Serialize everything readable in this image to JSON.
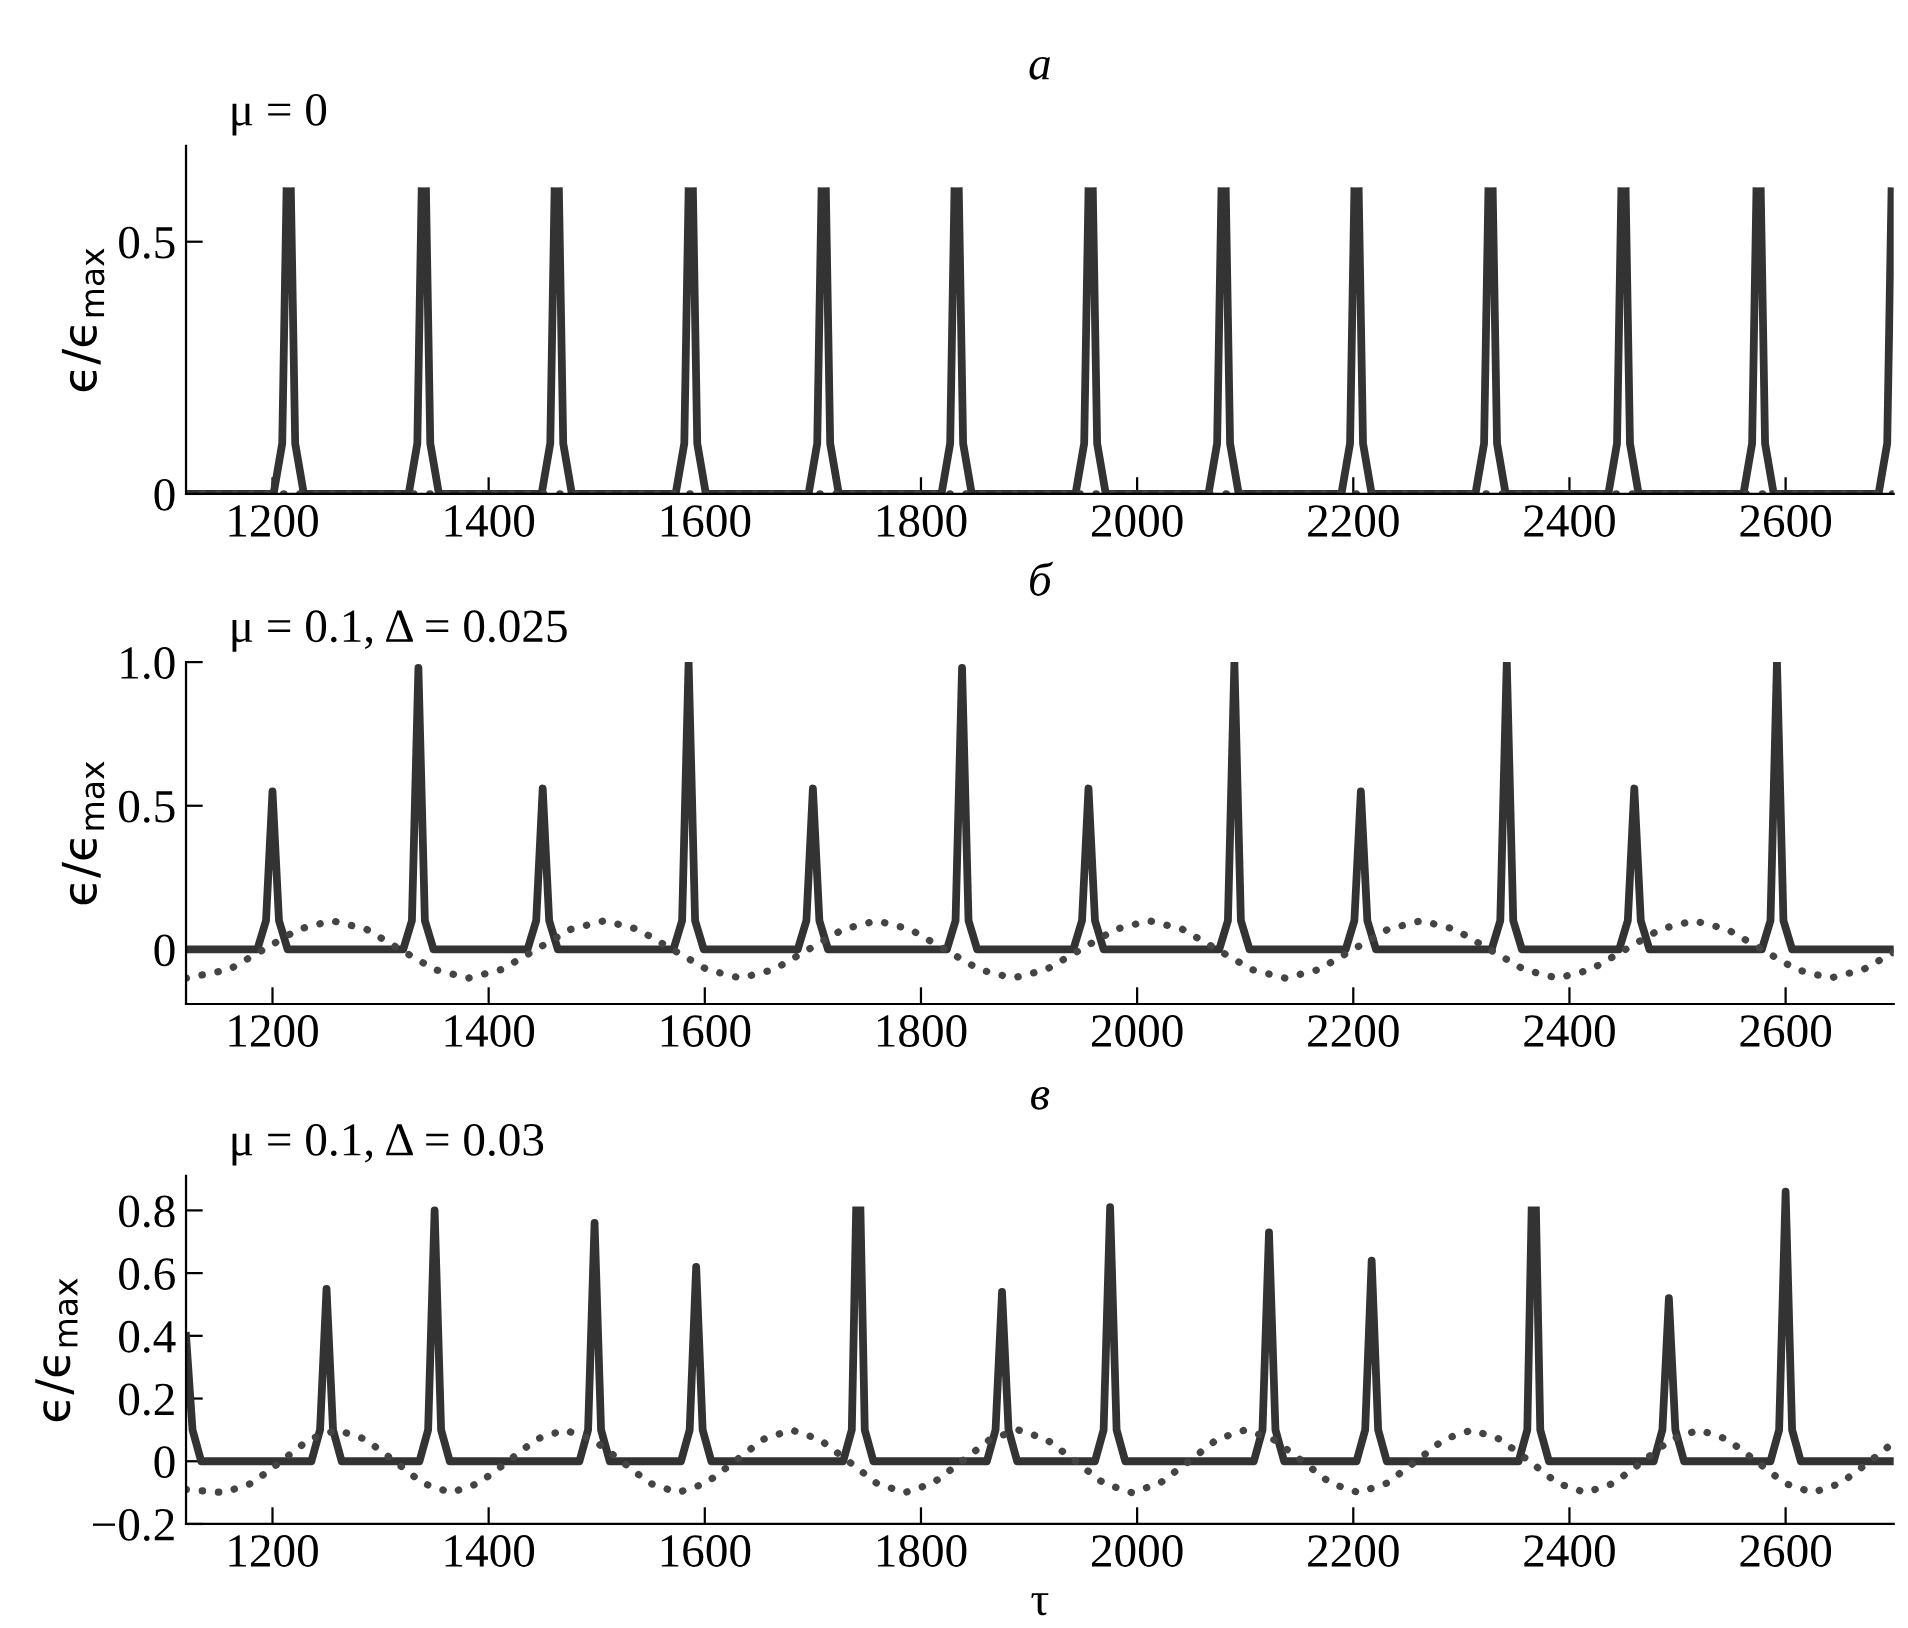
{
  "chart_data": [
    {
      "type": "line",
      "title": "а",
      "subtitle": "μ = 0",
      "ylabel": "ϵ/ϵ$_{max}$",
      "xlim": [
        1120,
        2700
      ],
      "ylim": [
        0,
        0.69
      ],
      "xticks": [
        1200,
        1400,
        1600,
        1800,
        2000,
        2200,
        2400,
        2600
      ],
      "yticks": [
        0,
        0.5
      ],
      "grid": false,
      "marker": "none",
      "series": [
        {
          "color": "#333333",
          "line_style": "solid",
          "x": [
            1120,
            1201,
            1209,
            1213,
            1215,
            1217,
            1221,
            1229,
            1326,
            1334,
            1338,
            1340,
            1342,
            1346,
            1354,
            1449,
            1457,
            1461,
            1463,
            1465,
            1469,
            1477,
            1573,
            1581,
            1585,
            1587,
            1589,
            1593,
            1601,
            1696,
            1704,
            1708,
            1710,
            1712,
            1716,
            1724,
            1819,
            1827,
            1831,
            1833,
            1835,
            1839,
            1847,
            1943,
            1951,
            1955,
            1957,
            1959,
            1963,
            1971,
            2066,
            2074,
            2078,
            2080,
            2082,
            2086,
            2094,
            2189,
            2197,
            2201,
            2203,
            2205,
            2209,
            2217,
            2313,
            2321,
            2325,
            2327,
            2329,
            2333,
            2341,
            2436,
            2444,
            2448,
            2450,
            2452,
            2456,
            2464,
            2561,
            2569,
            2573,
            2575,
            2577,
            2581,
            2589,
            2686,
            2694,
            2698
          ],
          "values": [
            0,
            0,
            0.1,
            0.6,
            null,
            0.6,
            0.1,
            0,
            0,
            0.1,
            0.6,
            null,
            0.6,
            0.1,
            0,
            0,
            0.1,
            0.6,
            null,
            0.6,
            0.1,
            0,
            0,
            0.1,
            0.6,
            null,
            0.6,
            0.1,
            0,
            0,
            0.1,
            0.6,
            null,
            0.6,
            0.1,
            0,
            0,
            0.1,
            0.6,
            null,
            0.6,
            0.1,
            0,
            0,
            0.1,
            0.6,
            null,
            0.6,
            0.1,
            0,
            0,
            0.1,
            0.6,
            null,
            0.6,
            0.1,
            0,
            0,
            0.1,
            0.6,
            null,
            0.6,
            0.1,
            0,
            0,
            0.1,
            0.6,
            null,
            0.6,
            0.1,
            0,
            0,
            0.1,
            0.6,
            null,
            0.6,
            0.1,
            0,
            0,
            0.1,
            0.6,
            null,
            0.6,
            0.1,
            0,
            0,
            0.1,
            0.6
          ]
        },
        {
          "color": "#444444",
          "line_style": "dotted",
          "x": [
            1120,
            2700
          ],
          "values": [
            0,
            0
          ]
        }
      ]
    },
    {
      "type": "line",
      "title": "б",
      "subtitle": "μ = 0.1, Δ = 0.025",
      "ylabel": "ϵ/ϵ$_{max}$",
      "xlim": [
        1120,
        2700
      ],
      "ylim": [
        -0.19,
        1.0
      ],
      "xticks": [
        1200,
        1400,
        1600,
        1800,
        2000,
        2200,
        2400,
        2600
      ],
      "yticks": [
        0,
        0.5,
        {
          "value": 1.0,
          "label": "1.0"
        }
      ],
      "grid": false,
      "marker": "none",
      "series": [
        {
          "color": "#333333",
          "line_style": "solid",
          "x": [
            1120,
            1186,
            1194,
            1200,
            1206,
            1214,
            1321,
            1329,
            1335,
            1341,
            1349,
            1436,
            1444,
            1450,
            1456,
            1464,
            1571,
            1579,
            1585,
            1591,
            1599,
            1686,
            1694,
            1700,
            1706,
            1714,
            1824,
            1832,
            1838,
            1844,
            1852,
            1941,
            1949,
            1955,
            1961,
            1969,
            2076,
            2084,
            2090,
            2096,
            2104,
            2193,
            2201,
            2207,
            2213,
            2221,
            2328,
            2336,
            2342,
            2348,
            2356,
            2446,
            2454,
            2460,
            2466,
            2474,
            2578,
            2586,
            2592,
            2598,
            2606,
            2700
          ],
          "values": [
            0,
            0,
            0.1,
            0.55,
            0.1,
            0,
            0,
            0.1,
            0.98,
            0.1,
            0,
            0,
            0.1,
            0.56,
            0.1,
            0,
            0,
            0.1,
            1.0,
            0.1,
            0,
            0,
            0.1,
            0.56,
            0.1,
            0,
            0,
            0.1,
            0.98,
            0.1,
            0,
            0,
            0.1,
            0.56,
            0.1,
            0,
            0,
            0.1,
            1.0,
            0.1,
            0,
            0,
            0.1,
            0.55,
            0.1,
            0,
            0,
            0.1,
            1.0,
            0.1,
            0,
            0,
            0.1,
            0.56,
            0.1,
            0,
            0,
            0.1,
            1.0,
            0.1,
            0,
            0
          ]
        },
        {
          "color": "#444444",
          "line_style": "dotted",
          "x": [
            1120,
            1160,
            1192,
            1224,
            1255,
            1287,
            1318,
            1350,
            1381,
            1412,
            1444,
            1476,
            1507,
            1538,
            1570,
            1602,
            1633,
            1664,
            1696,
            1728,
            1759,
            1790,
            1822,
            1854,
            1885,
            1916,
            1948,
            1980,
            2011,
            2042,
            2074,
            2106,
            2137,
            2168,
            2200,
            2232,
            2263,
            2294,
            2326,
            2358,
            2389,
            2420,
            2452,
            2484,
            2515,
            2546,
            2578,
            2610,
            2641,
            2672,
            2700
          ],
          "values": [
            -0.1,
            -0.07,
            0,
            0.07,
            0.1,
            0.07,
            0,
            -0.07,
            -0.1,
            -0.07,
            0,
            0.07,
            0.1,
            0.07,
            0,
            -0.07,
            -0.1,
            -0.07,
            0,
            0.07,
            0.1,
            0.07,
            0,
            -0.07,
            -0.1,
            -0.07,
            0,
            0.07,
            0.1,
            0.07,
            0,
            -0.07,
            -0.1,
            -0.07,
            0,
            0.07,
            0.1,
            0.07,
            0,
            -0.07,
            -0.1,
            -0.07,
            0,
            0.07,
            0.1,
            0.07,
            0,
            -0.07,
            -0.1,
            -0.07,
            -0.01
          ]
        }
      ]
    },
    {
      "type": "line",
      "title": "в",
      "subtitle": "μ = 0.1, Δ = 0.03",
      "xlabel": "τ",
      "ylabel": "ϵ/ϵ$_{max}$",
      "xlim": [
        1120,
        2700
      ],
      "ylim": [
        -0.2,
        0.91
      ],
      "xticks": [
        1200,
        1400,
        1600,
        1800,
        2000,
        2200,
        2400,
        2600
      ],
      "yticks": [
        {
          "value": -0.2,
          "label": "−0.2"
        },
        0,
        0.2,
        0.4,
        0.6,
        0.8
      ],
      "grid": false,
      "marker": "none",
      "series": [
        {
          "color": "#333333",
          "line_style": "solid",
          "x": [
            1120,
            1126,
            1134,
            1236,
            1244,
            1250,
            1256,
            1264,
            1336,
            1344,
            1350,
            1356,
            1364,
            1484,
            1492,
            1498,
            1504,
            1512,
            1578,
            1586,
            1592,
            1598,
            1606,
            1728,
            1736,
            1740,
            1742,
            1744,
            1748,
            1756,
            1861,
            1869,
            1875,
            1881,
            1889,
            1961,
            1969,
            1975,
            1981,
            1989,
            2108,
            2116,
            2122,
            2128,
            2136,
            2203,
            2211,
            2217,
            2223,
            2231,
            2353,
            2361,
            2365,
            2367,
            2369,
            2373,
            2381,
            2478,
            2486,
            2492,
            2498,
            2506,
            2586,
            2594,
            2600,
            2606,
            2614,
            2700
          ],
          "values": [
            0.4,
            0.1,
            0,
            0,
            0.1,
            0.55,
            0.1,
            0,
            0,
            0.1,
            0.8,
            0.1,
            0,
            0,
            0.1,
            0.76,
            0.1,
            0,
            0,
            0.1,
            0.62,
            0.1,
            0,
            0,
            0.1,
            0.8,
            null,
            0.8,
            0.1,
            0,
            0,
            0.1,
            0.54,
            0.1,
            0,
            0,
            0.1,
            0.81,
            0.1,
            0,
            0,
            0.1,
            0.73,
            0.1,
            0,
            0,
            0.1,
            0.64,
            0.1,
            0,
            0,
            0.1,
            0.8,
            null,
            0.8,
            0.1,
            0,
            0,
            0.1,
            0.52,
            0.1,
            0,
            0,
            0.1,
            0.86,
            0.1,
            0,
            0
          ]
        },
        {
          "color": "#444444",
          "line_style": "dotted",
          "x": [
            1120,
            1155,
            1181,
            1208,
            1234,
            1260,
            1286,
            1313,
            1339,
            1365,
            1391,
            1418,
            1444,
            1470,
            1496,
            1523,
            1549,
            1575,
            1601,
            1628,
            1654,
            1680,
            1706,
            1733,
            1759,
            1785,
            1811,
            1838,
            1864,
            1890,
            1916,
            1943,
            1969,
            1995,
            2021,
            2048,
            2074,
            2100,
            2126,
            2153,
            2179,
            2205,
            2231,
            2258,
            2284,
            2310,
            2336,
            2363,
            2389,
            2415,
            2441,
            2468,
            2494,
            2520,
            2546,
            2573,
            2599,
            2625,
            2651,
            2678,
            2700
          ],
          "values": [
            -0.09,
            -0.1,
            -0.07,
            0,
            0.07,
            0.1,
            0.07,
            0,
            -0.07,
            -0.1,
            -0.07,
            0,
            0.07,
            0.1,
            0.07,
            0,
            -0.07,
            -0.1,
            -0.07,
            0,
            0.07,
            0.1,
            0.07,
            0,
            -0.07,
            -0.1,
            -0.07,
            0,
            0.07,
            0.1,
            0.07,
            0,
            -0.07,
            -0.1,
            -0.07,
            0,
            0.07,
            0.1,
            0.07,
            0,
            -0.07,
            -0.1,
            -0.07,
            0,
            0.07,
            0.1,
            0.07,
            0,
            -0.07,
            -0.1,
            -0.07,
            0,
            0.07,
            0.1,
            0.07,
            0,
            -0.07,
            -0.1,
            -0.07,
            0,
            0.06
          ]
        }
      ]
    }
  ]
}
